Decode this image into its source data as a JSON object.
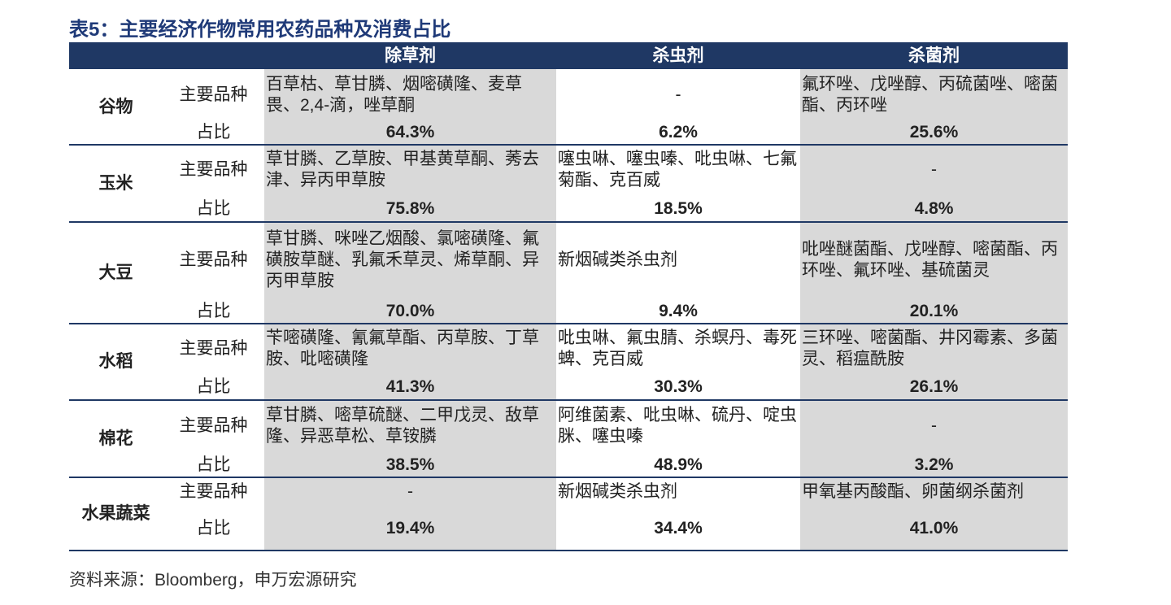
{
  "header": {
    "title": "表5：主要经济作物常用农药品种及消费占比"
  },
  "table": {
    "columns": [
      "除草剂",
      "杀虫剂",
      "杀菌剂"
    ],
    "rows": [
      {
        "crop": "谷物",
        "variety_label": "主要品种",
        "varieties": [
          "百草枯、草甘膦、烟嘧磺隆、麦草畏、2,4-滴，唑草酮",
          "-",
          "氟环唑、戊唑醇、丙硫菌唑、嘧菌酯、丙环唑"
        ],
        "share_label": "占比",
        "shares": [
          "64.3%",
          "6.2%",
          "25.6%"
        ]
      },
      {
        "crop": "玉米",
        "variety_label": "主要品种",
        "varieties": [
          "草甘膦、乙草胺、甲基黄草酮、莠去津、异丙甲草胺",
          "噻虫啉、噻虫嗪、吡虫啉、七氟菊酯、克百威",
          "-"
        ],
        "share_label": "占比",
        "shares": [
          "75.8%",
          "18.5%",
          "4.8%"
        ]
      },
      {
        "crop": "大豆",
        "variety_label": "主要品种",
        "varieties": [
          "草甘膦、咪唑乙烟酸、氯嘧磺隆、氟磺胺草醚、乳氟禾草灵、烯草酮、异丙甲草胺",
          "新烟碱类杀虫剂",
          "吡唑醚菌酯、戊唑醇、嘧菌酯、丙环唑、氟环唑、基硫菌灵"
        ],
        "share_label": "占比",
        "shares": [
          "70.0%",
          "9.4%",
          "20.1%"
        ]
      },
      {
        "crop": "水稻",
        "variety_label": "主要品种",
        "varieties": [
          "苄嘧磺隆、氰氟草酯、丙草胺、丁草胺、吡嘧磺隆",
          "吡虫啉、氟虫腈、杀螟丹、毒死蜱、克百威",
          "三环唑、嘧菌酯、井冈霉素、多菌灵、稻瘟酰胺"
        ],
        "share_label": "占比",
        "shares": [
          "41.3%",
          "30.3%",
          "26.1%"
        ]
      },
      {
        "crop": "棉花",
        "variety_label": "主要品种",
        "varieties": [
          "草甘膦、嘧草硫醚、二甲戊灵、敌草隆、异恶草松、草铵膦",
          "阿维菌素、吡虫啉、硫丹、啶虫脒、噻虫嗪",
          "-"
        ],
        "share_label": "占比",
        "shares": [
          "38.5%",
          "48.9%",
          "3.2%"
        ]
      },
      {
        "crop": "水果蔬菜",
        "variety_label": "主要品种",
        "varieties": [
          "-",
          "新烟碱类杀虫剂",
          "甲氧基丙酸酯、卵菌纲杀菌剂"
        ],
        "share_label": "占比",
        "shares": [
          "19.4%",
          "34.4%",
          "41.0%"
        ]
      }
    ]
  },
  "footer": {
    "source": "资料来源：Bloomberg，申万宏源研究"
  }
}
